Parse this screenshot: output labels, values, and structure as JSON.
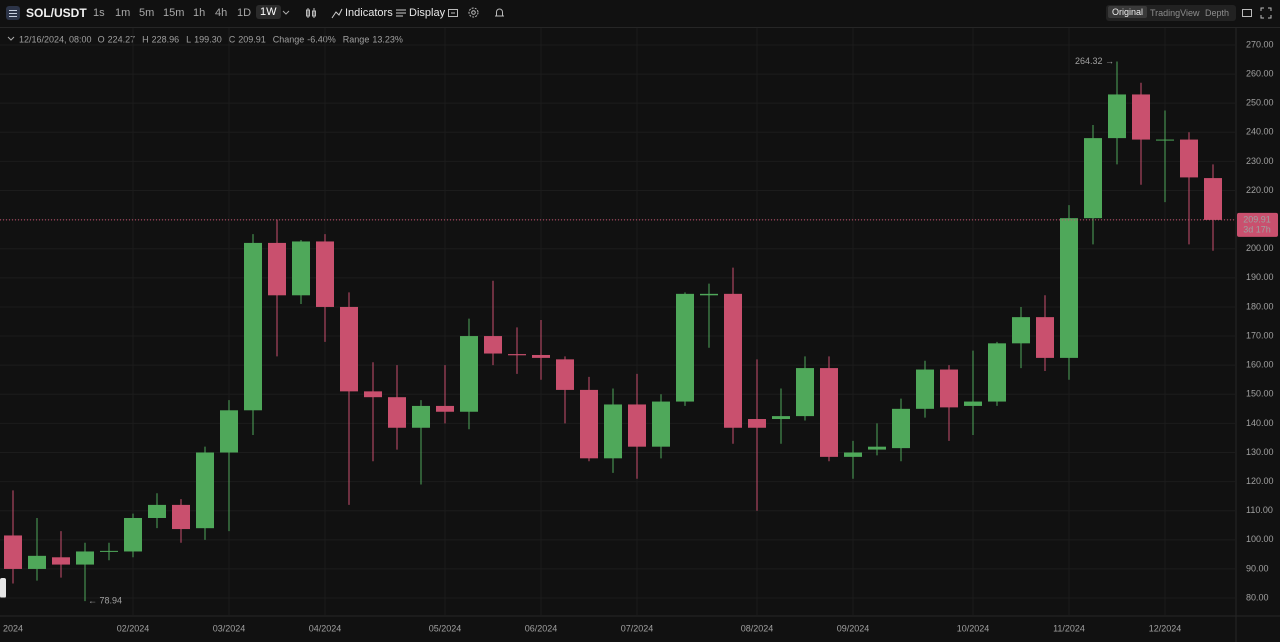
{
  "toolbar": {
    "symbol": "SOL/USDT",
    "intervals": [
      "1s",
      "1m",
      "5m",
      "15m",
      "1h",
      "4h",
      "1D",
      "1W"
    ],
    "indicators": "Indicators",
    "display": "Display",
    "views": [
      "Original",
      "TradingView",
      "Depth"
    ]
  },
  "chart_data": {
    "type": "candlestick",
    "header": [
      "12/16/2024, 08:00",
      "O",
      "224.27",
      "H",
      "228.96",
      "L",
      "199.30",
      "C",
      "209.91",
      "Change",
      "-6.40%",
      "Range",
      "13.23%"
    ],
    "categories": [
      "2024",
      null,
      null,
      null,
      null,
      "02/2024",
      null,
      null,
      null,
      "03/2024",
      null,
      null,
      null,
      "04/2024",
      null,
      null,
      null,
      null,
      "05/2024",
      null,
      null,
      null,
      "06/2024",
      null,
      null,
      null,
      "07/2024",
      null,
      null,
      null,
      null,
      "08/2024",
      null,
      null,
      null,
      "09/2024",
      null,
      null,
      null,
      null,
      "10/2024",
      null,
      null,
      null,
      "11/2024",
      null,
      null,
      null,
      "12/2024",
      null,
      null
    ],
    "open": [
      101.5,
      90,
      94,
      91.5,
      95.9,
      96,
      107.5,
      112,
      104,
      130,
      144.5,
      202,
      184,
      202.5,
      180,
      151,
      149,
      138.5,
      146,
      144,
      170,
      163.8,
      163.5,
      162,
      151.5,
      128,
      146.5,
      132,
      147.5,
      184,
      184.5,
      141.5,
      141.5,
      142.5,
      159,
      128.5,
      131,
      131.5,
      145,
      158.5,
      146,
      147.5,
      167.5,
      176.5,
      162.5,
      210.5,
      238,
      253,
      237.5,
      237.5,
      224.27
    ],
    "high": [
      117,
      107.5,
      103,
      99,
      99,
      109,
      116,
      114,
      132,
      148,
      205,
      210,
      203,
      205,
      185,
      161,
      160,
      148,
      160,
      176,
      189,
      173,
      175.5,
      163,
      156,
      152,
      157,
      150,
      185,
      188,
      193.5,
      162,
      152,
      163,
      163,
      134,
      140,
      148.5,
      161.5,
      160,
      165,
      168,
      180,
      184,
      215,
      242.5,
      264.32,
      257,
      247.5,
      240,
      228.96
    ],
    "low": [
      85,
      86,
      87,
      78.94,
      93,
      94,
      104,
      99,
      100,
      103,
      136,
      163,
      181,
      168,
      112,
      127,
      131,
      119,
      140,
      138,
      160,
      157,
      155,
      140,
      127,
      123,
      121,
      128,
      146,
      166,
      133,
      110,
      133,
      141,
      127,
      121,
      129,
      127,
      142,
      134,
      136,
      146,
      159,
      158,
      155,
      201.5,
      229,
      222,
      216,
      201.5,
      199.3
    ],
    "close": [
      90,
      94.5,
      91.5,
      96,
      96.2,
      107.5,
      112,
      103.7,
      130,
      144.5,
      202,
      184,
      202.5,
      180,
      151,
      149,
      138.5,
      146,
      144,
      170,
      164,
      163.4,
      162.5,
      151.5,
      128,
      146.5,
      132,
      147.5,
      184.5,
      184.5,
      138.5,
      138.5,
      142.5,
      159,
      128.5,
      130,
      132,
      145,
      158.5,
      145.5,
      147.5,
      167.5,
      176.5,
      162.5,
      210.5,
      238,
      253,
      237.5,
      237.5,
      224.5,
      209.91
    ],
    "up_color": "#4fa85a",
    "down_color": "#c9506e",
    "ylim": [
      75,
      276
    ],
    "yticks": [
      {
        "value": 80,
        "label": "80.00"
      },
      {
        "value": 90,
        "label": "90.00"
      },
      {
        "value": 100,
        "label": "100.00"
      },
      {
        "value": 110,
        "label": "110.00"
      },
      {
        "value": 120,
        "label": "120.00"
      },
      {
        "value": 130,
        "label": "130.00"
      },
      {
        "value": 140,
        "label": "140.00"
      },
      {
        "value": 150,
        "label": "150.00"
      },
      {
        "value": 160,
        "label": "160.00"
      },
      {
        "value": 170,
        "label": "170.00"
      },
      {
        "value": 180,
        "label": "180.00"
      },
      {
        "value": 190,
        "label": "190.00"
      },
      {
        "value": 200,
        "label": "200.00"
      },
      {
        "value": 210,
        "label": "210.00"
      },
      {
        "value": 220,
        "label": "220.00"
      },
      {
        "value": 230,
        "label": "230.00"
      },
      {
        "value": 240,
        "label": "240.00"
      },
      {
        "value": 250,
        "label": "250.00"
      },
      {
        "value": 260,
        "label": "260.00"
      },
      {
        "value": 270,
        "label": "270.00"
      }
    ],
    "grid": true,
    "last_price": {
      "value": 209.91,
      "label": "209.91"
    },
    "countdown": "3d 17h",
    "max_label": "264.32 →",
    "min_label": "← 78.94"
  }
}
